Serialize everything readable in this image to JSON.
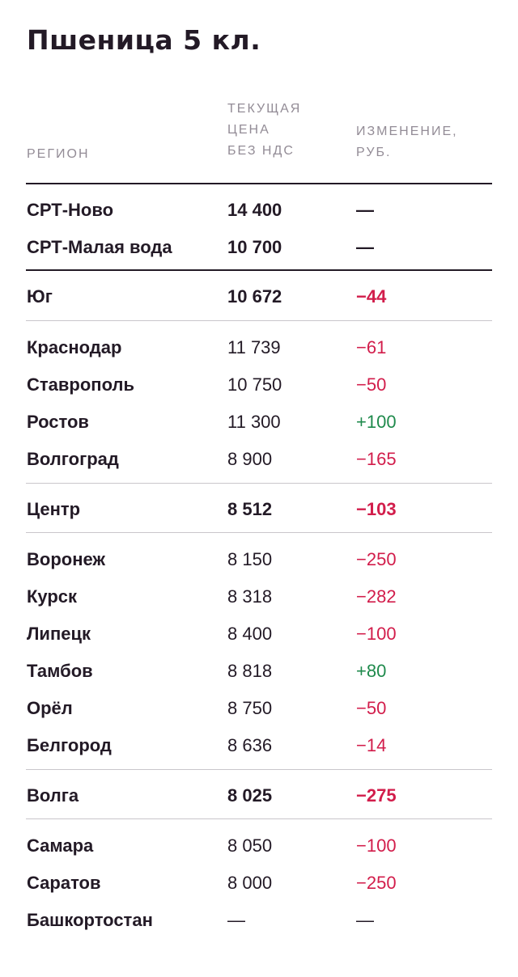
{
  "title": "Пшеница 5 кл.",
  "headers": {
    "region": [
      "РЕГИОН"
    ],
    "price": [
      "ТЕКУЩАЯ",
      "ЦЕНА",
      "БЕЗ НДС"
    ],
    "change": [
      "ИЗМЕНЕНИЕ,",
      "РУБ."
    ]
  },
  "colors": {
    "negative": "#d21d4b",
    "positive": "#1f8a4c",
    "text": "#231a26"
  },
  "rows": [
    {
      "region": "СРТ-Ново",
      "price": "14 400",
      "change": "—",
      "bold": true,
      "trend": "none"
    },
    {
      "region": "СРТ-Малая вода",
      "price": "10 700",
      "change": "—",
      "bold": true,
      "trend": "none"
    },
    {
      "region": "Юг",
      "price": "10 672",
      "change": "−44",
      "bold": true,
      "trend": "neg"
    },
    {
      "region": "Краснодар",
      "price": "11 739",
      "change": "−61",
      "bold": false,
      "trend": "neg"
    },
    {
      "region": "Ставрополь",
      "price": "10 750",
      "change": "−50",
      "bold": false,
      "trend": "neg"
    },
    {
      "region": "Ростов",
      "price": "11 300",
      "change": "+100",
      "bold": false,
      "trend": "pos"
    },
    {
      "region": "Волгоград",
      "price": "8 900",
      "change": "−165",
      "bold": false,
      "trend": "neg"
    },
    {
      "region": "Центр",
      "price": "8 512",
      "change": "−103",
      "bold": true,
      "trend": "neg"
    },
    {
      "region": "Воронеж",
      "price": "8 150",
      "change": "−250",
      "bold": false,
      "trend": "neg"
    },
    {
      "region": "Курск",
      "price": "8 318",
      "change": "−282",
      "bold": false,
      "trend": "neg"
    },
    {
      "region": "Липецк",
      "price": "8 400",
      "change": "−100",
      "bold": false,
      "trend": "neg"
    },
    {
      "region": "Тамбов",
      "price": "8 818",
      "change": "+80",
      "bold": false,
      "trend": "pos"
    },
    {
      "region": "Орёл",
      "price": "8 750",
      "change": "−50",
      "bold": false,
      "trend": "neg"
    },
    {
      "region": "Белгород",
      "price": "8 636",
      "change": "−14",
      "bold": false,
      "trend": "neg"
    },
    {
      "region": "Волга",
      "price": "8 025",
      "change": "−275",
      "bold": true,
      "trend": "neg"
    },
    {
      "region": "Самара",
      "price": "8 050",
      "change": "−100",
      "bold": false,
      "trend": "neg"
    },
    {
      "region": "Саратов",
      "price": "8 000",
      "change": "−250",
      "bold": false,
      "trend": "neg"
    },
    {
      "region": "Башкортостан",
      "price": "—",
      "change": "—",
      "bold": false,
      "trend": "none"
    }
  ]
}
